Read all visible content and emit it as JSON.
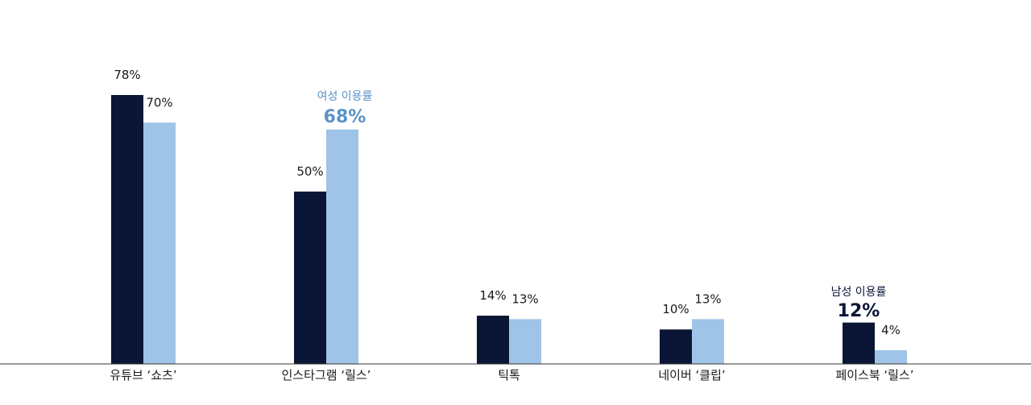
{
  "chart_data": {
    "type": "bar",
    "categories": [
      "유튜브 ‘쇼츠’",
      "인스타그램 ‘릴스’",
      "틱톡",
      "네이버 ‘클립’",
      "페이스북 ‘릴스’"
    ],
    "series": [
      {
        "values": [
          78,
          50,
          14,
          10,
          12
        ],
        "color": "#0b1636"
      },
      {
        "values": [
          70,
          68,
          13,
          13,
          4
        ],
        "color": "#9fc4e7"
      }
    ],
    "value_labels": [
      [
        "78%",
        "50%",
        "14%",
        "10%",
        "12%"
      ],
      [
        "70%",
        "68%",
        "13%",
        "13%",
        "4%"
      ]
    ],
    "ylim": [
      0,
      100
    ],
    "grid": false,
    "annotations": {
      "female_caption": "여성 이용률",
      "female_value": "68%",
      "male_caption": "남성 이용률",
      "male_value": "12%"
    }
  }
}
